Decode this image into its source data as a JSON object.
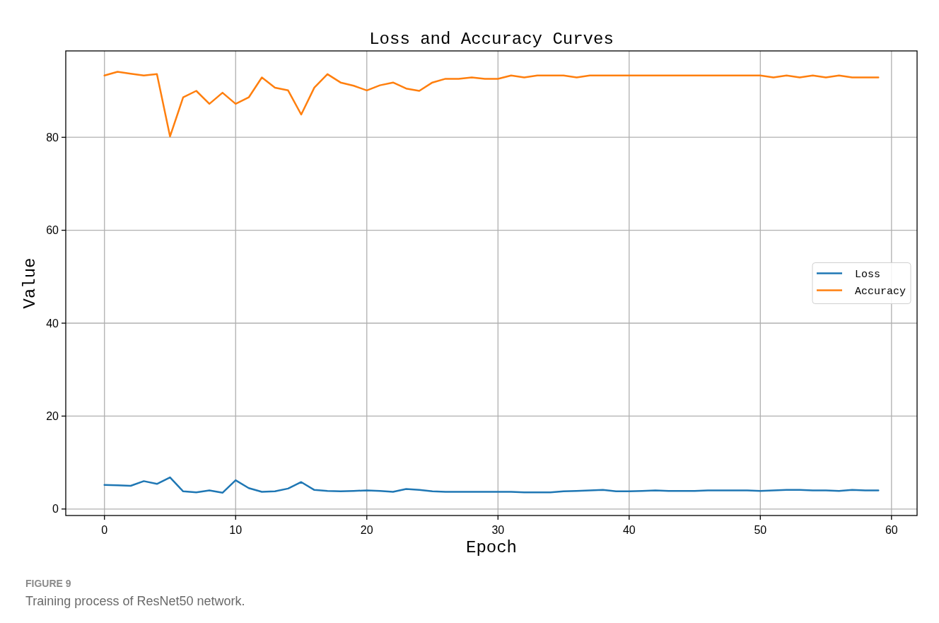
{
  "chart_data": {
    "type": "line",
    "title": "Loss and Accuracy Curves",
    "xlabel": "Epoch",
    "ylabel": "Value",
    "x": [
      0,
      1,
      2,
      3,
      4,
      5,
      6,
      7,
      8,
      9,
      10,
      11,
      12,
      13,
      14,
      15,
      16,
      17,
      18,
      19,
      20,
      21,
      22,
      23,
      24,
      25,
      26,
      27,
      28,
      29,
      30,
      31,
      32,
      33,
      34,
      35,
      36,
      37,
      38,
      39,
      40,
      41,
      42,
      43,
      44,
      45,
      46,
      47,
      48,
      49,
      50,
      51,
      52,
      53,
      54,
      55,
      56,
      57,
      58,
      59
    ],
    "series": [
      {
        "name": "Loss",
        "color": "#1f77b4",
        "values": [
          5.2,
          5.1,
          5.0,
          6.0,
          5.4,
          6.8,
          3.8,
          3.6,
          4.0,
          3.5,
          6.2,
          4.5,
          3.7,
          3.8,
          4.4,
          5.8,
          4.1,
          3.9,
          3.8,
          3.9,
          4.0,
          3.9,
          3.7,
          4.3,
          4.1,
          3.8,
          3.7,
          3.7,
          3.7,
          3.7,
          3.7,
          3.7,
          3.6,
          3.6,
          3.6,
          3.8,
          3.9,
          4.0,
          4.1,
          3.8,
          3.8,
          3.9,
          4.0,
          3.9,
          3.9,
          3.9,
          4.0,
          4.0,
          4.0,
          4.0,
          3.9,
          4.0,
          4.1,
          4.1,
          4.0,
          4.0,
          3.9,
          4.1,
          4.0,
          4.0
        ]
      },
      {
        "name": "Accuracy",
        "color": "#ff7f0e",
        "values": [
          93.3,
          94.1,
          93.7,
          93.3,
          93.6,
          80.2,
          88.6,
          90.0,
          87.2,
          89.6,
          87.2,
          88.6,
          92.9,
          90.7,
          90.1,
          84.9,
          90.7,
          93.6,
          91.8,
          91.1,
          90.1,
          91.2,
          91.8,
          90.5,
          90.0,
          91.8,
          92.6,
          92.6,
          92.9,
          92.6,
          92.6,
          93.3,
          92.9,
          93.3,
          93.3,
          93.3,
          92.9,
          93.3,
          93.3,
          93.3,
          93.3,
          93.3,
          93.3,
          93.3,
          93.3,
          93.3,
          93.3,
          93.3,
          93.3,
          93.3,
          93.3,
          92.9,
          93.3,
          92.9,
          93.3,
          92.9,
          93.3,
          92.9,
          92.9,
          92.9
        ]
      }
    ],
    "xlim": [
      -2.95,
      61.95
    ],
    "ylim": [
      -1.4,
      98.6
    ],
    "xticks": [
      0,
      10,
      20,
      30,
      40,
      50,
      60
    ],
    "yticks": [
      0,
      20,
      40,
      60,
      80
    ],
    "grid": true,
    "legend": "right",
    "annotations": [
      "FIGURE 9",
      "Training process of ResNet50 network."
    ]
  }
}
